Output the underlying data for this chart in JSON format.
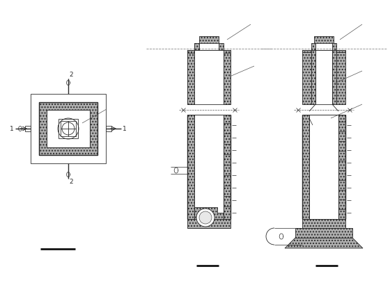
{
  "bg_color": "#ffffff",
  "line_color": "#2a2a2a",
  "concrete_color": "#b0b0b0",
  "fig_width": 5.6,
  "fig_height": 4.2,
  "dpi": 100,
  "lw": 0.6,
  "lw2": 1.0
}
